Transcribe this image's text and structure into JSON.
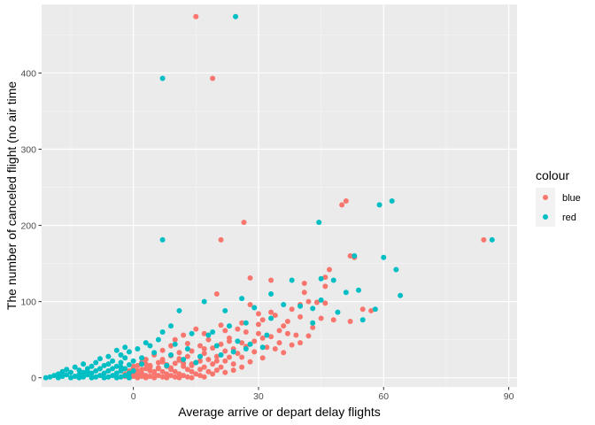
{
  "chart_data": {
    "type": "scatter",
    "title": "",
    "xlabel": "Average arrive or depart delay flights",
    "ylabel": "The number of canceled flight (no air time",
    "xlim": [
      -22,
      92
    ],
    "ylim": [
      -12,
      490
    ],
    "x_ticks": [
      0,
      30,
      60,
      90
    ],
    "y_ticks": [
      0,
      100,
      200,
      300,
      400
    ],
    "x_tick_labels": [
      "0",
      "30",
      "60",
      "90"
    ],
    "y_tick_labels": [
      "0",
      "100",
      "200",
      "300",
      "400"
    ],
    "grid": true,
    "legend": {
      "title": "colour",
      "position": "right",
      "entries": [
        {
          "label": "blue",
          "color": "#F8766D"
        },
        {
          "label": "red",
          "color": "#00BFC4"
        }
      ]
    },
    "series": [
      {
        "name": "blue",
        "color": "#F8766D",
        "points": [
          [
            15,
            474
          ],
          [
            19,
            393
          ],
          [
            26.5,
            204
          ],
          [
            21,
            181
          ],
          [
            84,
            181
          ],
          [
            51,
            232
          ],
          [
            50,
            227
          ],
          [
            52,
            160
          ],
          [
            53,
            158
          ],
          [
            47,
            142
          ],
          [
            46,
            132
          ],
          [
            28,
            131
          ],
          [
            33,
            128
          ],
          [
            41,
            124
          ],
          [
            46,
            120
          ],
          [
            41,
            112
          ],
          [
            20,
            110
          ],
          [
            42,
            100
          ],
          [
            44,
            99
          ],
          [
            46,
            98
          ],
          [
            40,
            96
          ],
          [
            28,
            96
          ],
          [
            55,
            90
          ],
          [
            57,
            88
          ],
          [
            33,
            86
          ],
          [
            30,
            84
          ],
          [
            34,
            82
          ],
          [
            40,
            80
          ],
          [
            45,
            78
          ],
          [
            31,
            76
          ],
          [
            37,
            74
          ],
          [
            52,
            74
          ],
          [
            26,
            72
          ],
          [
            21,
            69
          ],
          [
            36,
            68
          ],
          [
            43,
            66
          ],
          [
            22,
            62
          ],
          [
            15,
            64
          ],
          [
            27,
            60
          ],
          [
            30,
            58
          ],
          [
            12,
            56
          ],
          [
            17,
            58
          ],
          [
            39,
            56
          ],
          [
            33,
            54
          ],
          [
            23,
            52
          ],
          [
            18,
            50
          ],
          [
            10,
            50
          ],
          [
            29,
            48
          ],
          [
            35,
            46
          ],
          [
            26,
            46
          ],
          [
            40,
            46
          ],
          [
            13,
            45
          ],
          [
            21,
            44
          ],
          [
            38,
            43
          ],
          [
            9,
            42
          ],
          [
            16,
            42
          ],
          [
            27,
            41
          ],
          [
            32,
            40
          ],
          [
            19,
            39
          ],
          [
            24,
            38
          ],
          [
            34,
            38
          ],
          [
            7,
            36
          ],
          [
            14,
            35
          ],
          [
            22,
            35
          ],
          [
            29,
            34
          ],
          [
            11,
            33
          ],
          [
            17,
            32
          ],
          [
            25,
            32
          ],
          [
            36,
            33
          ],
          [
            5,
            30
          ],
          [
            9,
            29
          ],
          [
            13,
            28
          ],
          [
            20,
            28
          ],
          [
            26,
            27
          ],
          [
            31,
            26
          ],
          [
            3,
            24
          ],
          [
            7,
            24
          ],
          [
            11,
            23
          ],
          [
            16,
            22
          ],
          [
            22,
            22
          ],
          [
            28,
            21
          ],
          [
            2,
            20
          ],
          [
            6,
            20
          ],
          [
            10,
            19
          ],
          [
            14,
            18
          ],
          [
            19,
            18
          ],
          [
            24,
            18
          ],
          [
            1,
            16
          ],
          [
            4,
            16
          ],
          [
            8,
            15
          ],
          [
            12,
            15
          ],
          [
            17,
            14
          ],
          [
            21,
            14
          ],
          [
            26,
            14
          ],
          [
            0,
            12
          ],
          [
            3,
            12
          ],
          [
            6,
            12
          ],
          [
            9,
            11
          ],
          [
            13,
            11
          ],
          [
            16,
            11
          ],
          [
            20,
            10
          ],
          [
            24,
            10
          ],
          [
            -1,
            9
          ],
          [
            1,
            9
          ],
          [
            4,
            9
          ],
          [
            7,
            8
          ],
          [
            10,
            8
          ],
          [
            14,
            8
          ],
          [
            18,
            8
          ],
          [
            22,
            7
          ],
          [
            0,
            6
          ],
          [
            2,
            6
          ],
          [
            5,
            6
          ],
          [
            8,
            5
          ],
          [
            11,
            5
          ],
          [
            15,
            5
          ],
          [
            19,
            5
          ],
          [
            -1,
            4
          ],
          [
            1,
            4
          ],
          [
            3,
            3
          ],
          [
            6,
            3
          ],
          [
            9,
            3
          ],
          [
            12,
            3
          ],
          [
            16,
            3
          ],
          [
            0,
            2
          ],
          [
            2,
            2
          ],
          [
            4,
            2
          ],
          [
            7,
            1
          ],
          [
            10,
            1
          ],
          [
            13,
            1
          ],
          [
            17,
            1
          ],
          [
            -1,
            0
          ],
          [
            1,
            0
          ],
          [
            3,
            0
          ],
          [
            5,
            0
          ],
          [
            8,
            0
          ],
          [
            11,
            0
          ],
          [
            14,
            0
          ],
          [
            6,
            13
          ],
          [
            12,
            19
          ],
          [
            18,
            24
          ],
          [
            23,
            27
          ],
          [
            4,
            14
          ],
          [
            8,
            17
          ],
          [
            15,
            20
          ],
          [
            20,
            22
          ],
          [
            2,
            11
          ],
          [
            9,
            13
          ],
          [
            14,
            16
          ],
          [
            5,
            8
          ],
          [
            -2,
            5
          ],
          [
            -2,
            2
          ],
          [
            0,
            15
          ],
          [
            3,
            18
          ],
          [
            7,
            21
          ],
          [
            11,
            25
          ],
          [
            25,
            64
          ],
          [
            35,
            62
          ],
          [
            42,
            55
          ],
          [
            48,
            76
          ],
          [
            38,
            90
          ],
          [
            30,
            70
          ],
          [
            17,
            38
          ],
          [
            23,
            48
          ],
          [
            31,
            52
          ],
          [
            37,
            58
          ]
        ]
      },
      {
        "name": "red",
        "color": "#00BFC4",
        "points": [
          [
            24.5,
            474
          ],
          [
            7,
            393
          ],
          [
            7,
            181
          ],
          [
            86,
            181
          ],
          [
            62,
            232
          ],
          [
            44.5,
            204
          ],
          [
            59,
            227
          ],
          [
            60,
            158
          ],
          [
            53,
            160
          ],
          [
            63,
            142
          ],
          [
            64,
            108
          ],
          [
            48,
            128
          ],
          [
            54,
            115
          ],
          [
            51,
            112
          ],
          [
            45,
            130
          ],
          [
            45,
            102
          ],
          [
            38,
            128
          ],
          [
            33,
            110
          ],
          [
            26,
            104
          ],
          [
            17,
            100
          ],
          [
            43,
            91
          ],
          [
            49,
            86
          ],
          [
            58,
            90
          ],
          [
            55,
            76
          ],
          [
            36,
            96
          ],
          [
            40,
            94
          ],
          [
            29,
            92
          ],
          [
            22,
            88
          ],
          [
            11,
            88
          ],
          [
            43,
            72
          ],
          [
            33,
            78
          ],
          [
            27,
            72
          ],
          [
            23,
            68
          ],
          [
            9,
            68
          ],
          [
            19,
            60
          ],
          [
            14,
            58
          ],
          [
            7,
            60
          ],
          [
            6,
            50
          ],
          [
            3,
            46
          ],
          [
            -2,
            40
          ],
          [
            1,
            38
          ],
          [
            4,
            42
          ],
          [
            -4,
            36
          ],
          [
            -1,
            34
          ],
          [
            5,
            33
          ],
          [
            -3,
            30
          ],
          [
            -6,
            28
          ],
          [
            -2,
            26
          ],
          [
            2,
            26
          ],
          [
            -8,
            25
          ],
          [
            -5,
            22
          ],
          [
            -9,
            20
          ],
          [
            -3,
            20
          ],
          [
            0,
            22
          ],
          [
            -12,
            18
          ],
          [
            -7,
            16
          ],
          [
            -10,
            15
          ],
          [
            -4,
            15
          ],
          [
            -1,
            17
          ],
          [
            -14,
            14
          ],
          [
            -11,
            12
          ],
          [
            -8,
            12
          ],
          [
            -5,
            12
          ],
          [
            -2,
            12
          ],
          [
            -16,
            11
          ],
          [
            -13,
            10
          ],
          [
            -9,
            9
          ],
          [
            -6,
            9
          ],
          [
            -3,
            9
          ],
          [
            0,
            9
          ],
          [
            -17,
            8
          ],
          [
            -15,
            7
          ],
          [
            -12,
            7
          ],
          [
            -10,
            6
          ],
          [
            -7,
            6
          ],
          [
            -4,
            6
          ],
          [
            -1,
            6
          ],
          [
            -18,
            5
          ],
          [
            -16,
            4
          ],
          [
            -13,
            4
          ],
          [
            -11,
            4
          ],
          [
            -8,
            3
          ],
          [
            -5,
            3
          ],
          [
            -2,
            3
          ],
          [
            -19,
            3
          ],
          [
            -17,
            2
          ],
          [
            -14,
            2
          ],
          [
            -12,
            1
          ],
          [
            -9,
            1
          ],
          [
            -6,
            1
          ],
          [
            -3,
            1
          ],
          [
            -20,
            1
          ],
          [
            -18,
            0
          ],
          [
            -15,
            0
          ],
          [
            -13,
            0
          ],
          [
            -10,
            0
          ],
          [
            -7,
            0
          ],
          [
            -4,
            0
          ],
          [
            -21,
            0
          ],
          [
            -1,
            0
          ],
          [
            -11,
            8
          ],
          [
            -6,
            18
          ],
          [
            -3,
            14
          ],
          [
            2,
            18
          ],
          [
            9,
            30
          ],
          [
            13,
            38
          ],
          [
            20,
            42
          ],
          [
            25,
            48
          ],
          [
            28,
            44
          ],
          [
            32,
            56
          ],
          [
            18,
            56
          ],
          [
            10,
            44
          ],
          [
            15,
            20
          ],
          [
            21,
            30
          ],
          [
            27,
            38
          ],
          [
            31,
            40
          ],
          [
            12,
            24
          ],
          [
            8,
            16
          ],
          [
            16,
            28
          ],
          [
            24,
            34
          ]
        ]
      }
    ]
  }
}
